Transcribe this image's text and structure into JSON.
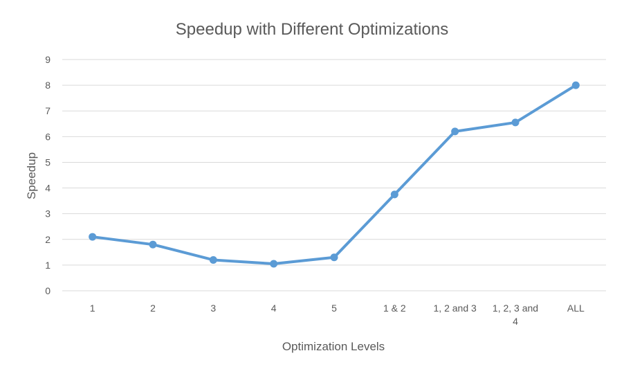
{
  "chart_data": {
    "type": "line",
    "title": "Speedup with Different Optimizations",
    "xlabel": "Optimization Levels",
    "ylabel": "Speedup",
    "categories": [
      "1",
      "2",
      "3",
      "4",
      "5",
      "1 & 2",
      "1, 2 and 3",
      "1, 2, 3 and 4",
      "ALL"
    ],
    "category_lines": [
      [
        "1"
      ],
      [
        "2"
      ],
      [
        "3"
      ],
      [
        "4"
      ],
      [
        "5"
      ],
      [
        "1 & 2"
      ],
      [
        "1, 2 and 3"
      ],
      [
        "1, 2, 3 and",
        "4"
      ],
      [
        "ALL"
      ]
    ],
    "series": [
      {
        "values": [
          2.1,
          1.8,
          1.2,
          1.05,
          1.3,
          3.75,
          6.2,
          6.55,
          8.0
        ]
      }
    ],
    "ylim": [
      0,
      9
    ],
    "yticks": [
      0,
      1,
      2,
      3,
      4,
      5,
      6,
      7,
      8,
      9
    ],
    "grid": true,
    "legend": "none",
    "colors": {
      "line": "#5b9bd5",
      "grid": "#d9d9d9",
      "text": "#595959"
    }
  }
}
